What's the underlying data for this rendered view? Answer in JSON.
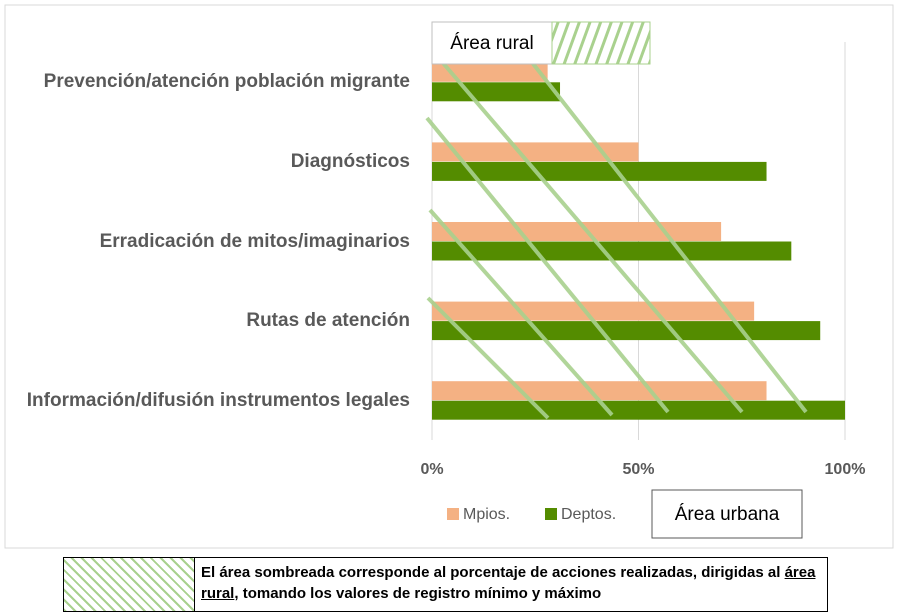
{
  "chart_data": {
    "type": "bar",
    "orientation": "horizontal",
    "categories": [
      "Prevención/atención población migrante",
      "Diagnósticos",
      "Erradicación de mitos/imaginarios",
      "Rutas de atención",
      "Información/difusión instrumentos legales"
    ],
    "series": [
      {
        "name": "Mpios.",
        "color": "#f4b183",
        "values": [
          28,
          50,
          70,
          78,
          81
        ]
      },
      {
        "name": "Deptos.",
        "color": "#548c00",
        "values": [
          31,
          81,
          87,
          94,
          100
        ]
      }
    ],
    "xlim": [
      0,
      100
    ],
    "xticks": [
      {
        "value": 0,
        "label": "0%"
      },
      {
        "value": 50,
        "label": "50%"
      },
      {
        "value": 100,
        "label": "100%"
      }
    ],
    "grid": true,
    "legend": "bottom",
    "annotations": [
      "Área rural",
      "Área urbana"
    ]
  },
  "footer": {
    "text_before": "El área sombreada corresponde al porcentaje de acciones realizadas, dirigidas al ",
    "underlined": "área rural",
    "text_after": ", tomando los valores de registro mínimo y máximo"
  }
}
